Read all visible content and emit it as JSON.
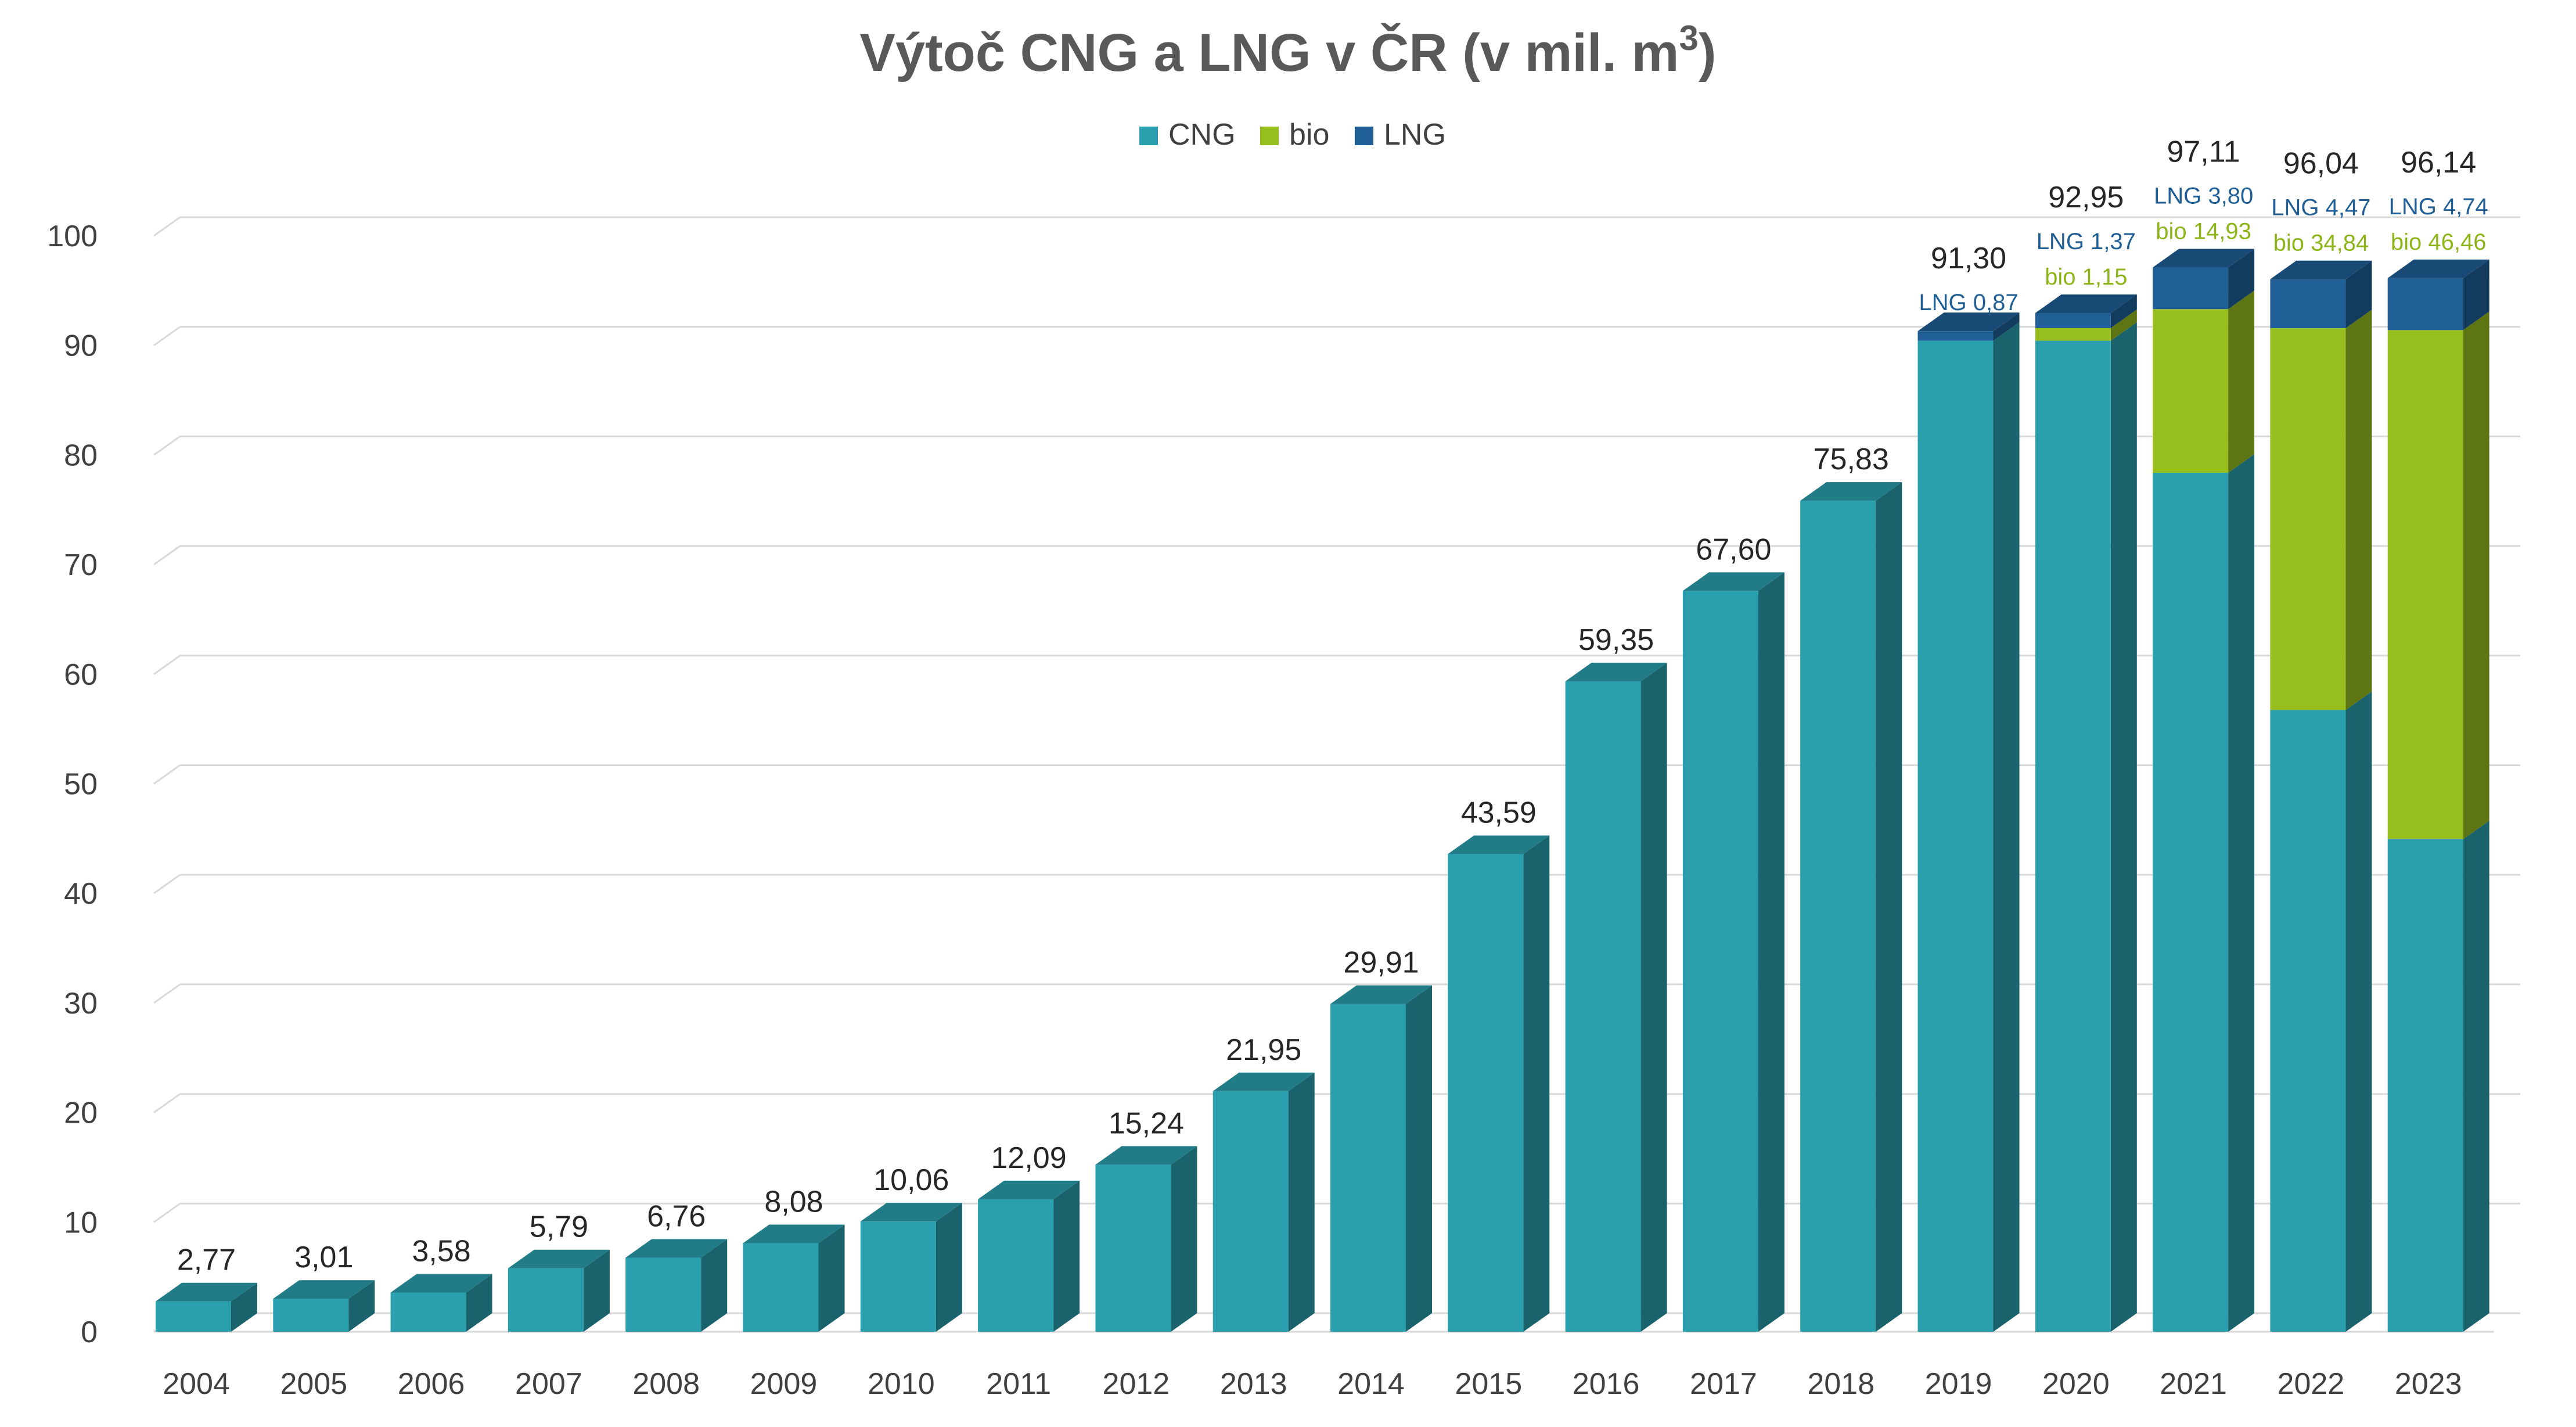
{
  "chart_data": {
    "type": "bar",
    "stacked": true,
    "three_d": true,
    "title": "Výtoč CNG a LNG v ČR (v mil. m",
    "title_superscript": "3",
    "title_suffix": ")",
    "categories": [
      "2004",
      "2005",
      "2006",
      "2007",
      "2008",
      "2009",
      "2010",
      "2011",
      "2012",
      "2013",
      "2014",
      "2015",
      "2016",
      "2017",
      "2018",
      "2019",
      "2020",
      "2021",
      "2022",
      "2023"
    ],
    "series": [
      {
        "name": "CNG",
        "color": "#2A9FAE",
        "values": [
          2.77,
          3.01,
          3.58,
          5.79,
          6.76,
          8.08,
          10.06,
          12.09,
          15.24,
          21.95,
          29.91,
          43.59,
          59.35,
          67.6,
          75.83,
          90.43,
          90.43,
          78.38,
          56.73,
          44.94
        ]
      },
      {
        "name": "bio",
        "color": "#96BE1E",
        "values": [
          0,
          0,
          0,
          0,
          0,
          0,
          0,
          0,
          0,
          0,
          0,
          0,
          0,
          0,
          0,
          0,
          1.15,
          14.93,
          34.84,
          46.46
        ]
      },
      {
        "name": "LNG",
        "color": "#1F5F96",
        "values": [
          0,
          0,
          0,
          0,
          0,
          0,
          0,
          0,
          0,
          0,
          0,
          0,
          0,
          0,
          0,
          0.87,
          1.37,
          3.8,
          4.47,
          4.74
        ]
      }
    ],
    "totals": [
      "2,77",
      "3,01",
      "3,58",
      "5,79",
      "6,76",
      "8,08",
      "10,06",
      "12,09",
      "15,24",
      "21,95",
      "29,91",
      "43,59",
      "59,35",
      "67,60",
      "75,83",
      "91,30",
      "92,95",
      "97,11",
      "96,04",
      "96,14"
    ],
    "detail_labels": [
      {
        "category": "2019",
        "lng": "LNG 0,87",
        "bio": ""
      },
      {
        "category": "2020",
        "lng": "LNG 1,37",
        "bio": "bio 1,15"
      },
      {
        "category": "2021",
        "lng": "LNG  3,80",
        "bio": "bio 14,93"
      },
      {
        "category": "2022",
        "lng": "LNG 4,47",
        "bio": "bio 34,84"
      },
      {
        "category": "2023",
        "lng": "LNG 4,74",
        "bio": "bio 46,46"
      }
    ],
    "legend": [
      "CNG",
      "bio",
      "LNG"
    ],
    "legend_position": "top",
    "ylim": [
      0,
      100
    ],
    "yticks": [
      0,
      10,
      20,
      30,
      40,
      50,
      60,
      70,
      80,
      90,
      100
    ],
    "grid": true,
    "xlabel": "",
    "ylabel": "",
    "colors": {
      "lng_label": "#1F5F96",
      "bio_label": "#8DB51A",
      "grid": "#D9D9D9"
    }
  }
}
